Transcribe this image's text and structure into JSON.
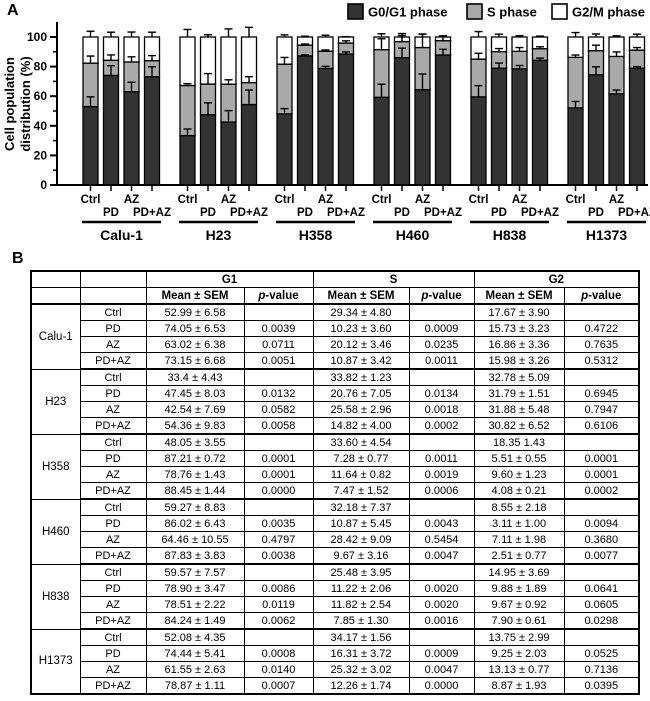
{
  "panel_a_label": "A",
  "panel_b_label": "B",
  "chart_data": {
    "type": "stacked_bar",
    "ylabel_lines": [
      "Cell population",
      "distribution (%)"
    ],
    "ylim": [
      0,
      100
    ],
    "yticks": [
      0,
      20,
      40,
      60,
      80,
      100
    ],
    "minor_tick_step": 10,
    "legend_position": "top-right",
    "phases": [
      "G0/G1 phase",
      "S phase",
      "G2/M phase"
    ],
    "phase_colors": [
      "#333333",
      "#a9a9a9",
      "#ffffff"
    ],
    "treatments": [
      "Ctrl",
      "PD",
      "AZ",
      "PD+AZ"
    ],
    "groups": [
      {
        "name": "Calu-1",
        "bars": [
          {
            "treatment": "Ctrl",
            "values": [
              52.99,
              29.34,
              17.67
            ],
            "sems": [
              6.58,
              4.8,
              3.9
            ]
          },
          {
            "treatment": "PD",
            "values": [
              74.05,
              10.23,
              15.73
            ],
            "sems": [
              6.53,
              3.6,
              3.23
            ]
          },
          {
            "treatment": "AZ",
            "values": [
              63.02,
              20.12,
              16.86
            ],
            "sems": [
              6.38,
              3.46,
              3.36
            ]
          },
          {
            "treatment": "PD+AZ",
            "values": [
              73.15,
              10.87,
              15.98
            ],
            "sems": [
              6.68,
              3.42,
              3.26
            ]
          }
        ]
      },
      {
        "name": "H23",
        "bars": [
          {
            "treatment": "Ctrl",
            "values": [
              33.4,
              33.82,
              32.78
            ],
            "sems": [
              4.43,
              1.23,
              5.09
            ]
          },
          {
            "treatment": "PD",
            "values": [
              47.45,
              20.76,
              31.79
            ],
            "sems": [
              8.03,
              7.05,
              1.51
            ]
          },
          {
            "treatment": "AZ",
            "values": [
              42.54,
              25.58,
              31.88
            ],
            "sems": [
              7.69,
              2.96,
              5.48
            ]
          },
          {
            "treatment": "PD+AZ",
            "values": [
              54.36,
              14.82,
              30.82
            ],
            "sems": [
              9.83,
              4.0,
              6.52
            ]
          }
        ]
      },
      {
        "name": "H358",
        "bars": [
          {
            "treatment": "Ctrl",
            "values": [
              48.05,
              33.6,
              18.35
            ],
            "sems": [
              3.55,
              4.54,
              1.43
            ]
          },
          {
            "treatment": "PD",
            "values": [
              87.21,
              7.28,
              5.51
            ],
            "sems": [
              0.72,
              0.77,
              0.55
            ]
          },
          {
            "treatment": "AZ",
            "values": [
              78.76,
              11.64,
              9.6
            ],
            "sems": [
              1.43,
              0.82,
              1.23
            ]
          },
          {
            "treatment": "PD+AZ",
            "values": [
              88.45,
              7.47,
              4.08
            ],
            "sems": [
              1.44,
              1.52,
              0.21
            ]
          }
        ]
      },
      {
        "name": "H460",
        "bars": [
          {
            "treatment": "Ctrl",
            "values": [
              59.27,
              32.18,
              8.55
            ],
            "sems": [
              8.83,
              7.37,
              2.18
            ]
          },
          {
            "treatment": "PD",
            "values": [
              86.02,
              10.87,
              3.11
            ],
            "sems": [
              6.43,
              5.45,
              1.0
            ]
          },
          {
            "treatment": "AZ",
            "values": [
              64.46,
              28.42,
              7.11
            ],
            "sems": [
              10.55,
              9.09,
              1.98
            ]
          },
          {
            "treatment": "PD+AZ",
            "values": [
              87.83,
              9.67,
              2.51
            ],
            "sems": [
              3.83,
              3.16,
              0.77
            ]
          }
        ]
      },
      {
        "name": "H838",
        "bars": [
          {
            "treatment": "Ctrl",
            "values": [
              59.57,
              25.48,
              14.95
            ],
            "sems": [
              7.57,
              3.95,
              3.69
            ]
          },
          {
            "treatment": "PD",
            "values": [
              78.9,
              11.22,
              9.88
            ],
            "sems": [
              3.47,
              2.06,
              1.89
            ]
          },
          {
            "treatment": "AZ",
            "values": [
              78.51,
              11.82,
              9.67
            ],
            "sems": [
              2.22,
              2.54,
              0.92
            ]
          },
          {
            "treatment": "PD+AZ",
            "values": [
              84.24,
              7.85,
              7.9
            ],
            "sems": [
              1.49,
              1.3,
              0.61
            ]
          }
        ]
      },
      {
        "name": "H1373",
        "bars": [
          {
            "treatment": "Ctrl",
            "values": [
              52.08,
              34.17,
              13.75
            ],
            "sems": [
              4.35,
              1.56,
              2.99
            ]
          },
          {
            "treatment": "PD",
            "values": [
              74.44,
              16.31,
              9.25
            ],
            "sems": [
              5.41,
              3.72,
              2.03
            ]
          },
          {
            "treatment": "AZ",
            "values": [
              61.55,
              25.32,
              13.13
            ],
            "sems": [
              2.63,
              3.02,
              0.77
            ]
          },
          {
            "treatment": "PD+AZ",
            "values": [
              78.87,
              12.26,
              8.87
            ],
            "sems": [
              1.11,
              1.74,
              1.93
            ]
          }
        ]
      }
    ]
  },
  "table": {
    "column_groups": [
      "G1",
      "S",
      "G2"
    ],
    "subheaders": {
      "mean": "Mean ± SEM",
      "p_italic": "p",
      "p_rest": "-value"
    },
    "blocks": [
      {
        "cell_line": "Calu-1",
        "rows": [
          {
            "treatment": "Ctrl",
            "g1_mean": "52.99 ± 6.58",
            "g1_p": "",
            "s_mean": "29.34 ± 4.80",
            "s_p": "",
            "g2_mean": "17.67 ± 3.90",
            "g2_p": ""
          },
          {
            "treatment": "PD",
            "g1_mean": "74.05 ± 6.53",
            "g1_p": "0.0039",
            "s_mean": "10.23 ± 3.60",
            "s_p": "0.0009",
            "g2_mean": "15.73 ± 3.23",
            "g2_p": "0.4722"
          },
          {
            "treatment": "AZ",
            "g1_mean": "63.02 ± 6.38",
            "g1_p": "0.0711",
            "s_mean": "20.12 ± 3.46",
            "s_p": "0.0235",
            "g2_mean": "16.86 ± 3.36",
            "g2_p": "0.7635"
          },
          {
            "treatment": "PD+AZ",
            "g1_mean": "73.15 ± 6.68",
            "g1_p": "0.0051",
            "s_mean": "10.87 ± 3.42",
            "s_p": "0.0011",
            "g2_mean": "15.98 ± 3.26",
            "g2_p": "0.5312"
          }
        ]
      },
      {
        "cell_line": "H23",
        "rows": [
          {
            "treatment": "Ctrl",
            "g1_mean": "33.4 ± 4.43",
            "g1_p": "",
            "s_mean": "33.82 ± 1.23",
            "s_p": "",
            "g2_mean": "32.78 ± 5.09",
            "g2_p": ""
          },
          {
            "treatment": "PD",
            "g1_mean": "47.45 ± 8.03",
            "g1_p": "0.0132",
            "s_mean": "20.76 ± 7.05",
            "s_p": "0.0134",
            "g2_mean": "31.79 ± 1.51",
            "g2_p": "0.6945"
          },
          {
            "treatment": "AZ",
            "g1_mean": "42.54 ± 7.69",
            "g1_p": "0.0582",
            "s_mean": "25.58 ± 2.96",
            "s_p": "0.0018",
            "g2_mean": "31.88 ± 5.48",
            "g2_p": "0.7947"
          },
          {
            "treatment": "PD+AZ",
            "g1_mean": "54.36 ± 9.83",
            "g1_p": "0.0058",
            "s_mean": "14.82 ± 4.00",
            "s_p": "0.0002",
            "g2_mean": "30.82 ± 6.52",
            "g2_p": "0.6106"
          }
        ]
      },
      {
        "cell_line": "H358",
        "rows": [
          {
            "treatment": "Ctrl",
            "g1_mean": "48.05 ± 3.55",
            "g1_p": "",
            "s_mean": "33.60 ± 4.54",
            "s_p": "",
            "g2_mean": "18.35 1.43",
            "g2_p": ""
          },
          {
            "treatment": "PD",
            "g1_mean": "87.21 ± 0.72",
            "g1_p": "0.0001",
            "s_mean": "7.28 ± 0.77",
            "s_p": "0.0011",
            "g2_mean": "5.51 ± 0.55",
            "g2_p": "0.0001"
          },
          {
            "treatment": "AZ",
            "g1_mean": "78.76 ± 1.43",
            "g1_p": "0.0001",
            "s_mean": "11.64 ± 0.82",
            "s_p": "0.0019",
            "g2_mean": "9.60 ± 1.23",
            "g2_p": "0.0001"
          },
          {
            "treatment": "PD+AZ",
            "g1_mean": "88.45 ± 1.44",
            "g1_p": "0.0000",
            "s_mean": "7.47 ± 1.52",
            "s_p": "0.0006",
            "g2_mean": "4.08 ± 0.21",
            "g2_p": "0.0002"
          }
        ]
      },
      {
        "cell_line": "H460",
        "rows": [
          {
            "treatment": "Ctrl",
            "g1_mean": "59.27 ± 8.83",
            "g1_p": "",
            "s_mean": "32.18 ± 7.37",
            "s_p": "",
            "g2_mean": "8.55 ± 2.18",
            "g2_p": ""
          },
          {
            "treatment": "PD",
            "g1_mean": "86.02 ± 6.43",
            "g1_p": "0.0035",
            "s_mean": "10.87 ± 5.45",
            "s_p": "0.0043",
            "g2_mean": "3.11 ± 1.00",
            "g2_p": "0.0094"
          },
          {
            "treatment": "AZ",
            "g1_mean": "64.46 ± 10.55",
            "g1_p": "0.4797",
            "s_mean": "28.42 ± 9.09",
            "s_p": "0.5454",
            "g2_mean": "7.11 ± 1.98",
            "g2_p": "0.3680"
          },
          {
            "treatment": "PD+AZ",
            "g1_mean": "87.83 ± 3.83",
            "g1_p": "0.0038",
            "s_mean": "9.67 ± 3.16",
            "s_p": "0.0047",
            "g2_mean": "2.51 ± 0.77",
            "g2_p": "0.0077"
          }
        ]
      },
      {
        "cell_line": "H838",
        "rows": [
          {
            "treatment": "Ctrl",
            "g1_mean": "59.57 ± 7.57",
            "g1_p": "",
            "s_mean": "25.48 ± 3.95",
            "s_p": "",
            "g2_mean": "14.95 ± 3.69",
            "g2_p": ""
          },
          {
            "treatment": "PD",
            "g1_mean": "78.90 ± 3.47",
            "g1_p": "0.0086",
            "s_mean": "11.22 ± 2.06",
            "s_p": "0.0020",
            "g2_mean": "9.88 ± 1.89",
            "g2_p": "0.0641"
          },
          {
            "treatment": "AZ",
            "g1_mean": "78.51 ± 2.22",
            "g1_p": "0.0119",
            "s_mean": "11.82 ± 2.54",
            "s_p": "0.0020",
            "g2_mean": "9.67 ± 0.92",
            "g2_p": "0.0605"
          },
          {
            "treatment": "PD+AZ",
            "g1_mean": "84.24 ± 1.49",
            "g1_p": "0.0062",
            "s_mean": "7.85 ± 1.30",
            "s_p": "0.0016",
            "g2_mean": "7.90 ± 0.61",
            "g2_p": "0.0298"
          }
        ]
      },
      {
        "cell_line": "H1373",
        "rows": [
          {
            "treatment": "Ctrl",
            "g1_mean": "52.08 ± 4.35",
            "g1_p": "",
            "s_mean": "34.17 ± 1.56",
            "s_p": "",
            "g2_mean": "13.75 ± 2.99",
            "g2_p": ""
          },
          {
            "treatment": "PD",
            "g1_mean": "74.44 ± 5.41",
            "g1_p": "0.0008",
            "s_mean": "16.31 ± 3.72",
            "s_p": "0.0009",
            "g2_mean": "9.25 ± 2.03",
            "g2_p": "0.0525"
          },
          {
            "treatment": "AZ",
            "g1_mean": "61.55 ± 2.63",
            "g1_p": "0.0140",
            "s_mean": "25.32 ± 3.02",
            "s_p": "0.0047",
            "g2_mean": "13.13 ± 0.77",
            "g2_p": "0.7136"
          },
          {
            "treatment": "PD+AZ",
            "g1_mean": "78.87 ± 1.11",
            "g1_p": "0.0007",
            "s_mean": "12.26 ± 1.74",
            "s_p": "0.0000",
            "g2_mean": "8.87 ± 1.93",
            "g2_p": "0.0395"
          }
        ]
      }
    ]
  }
}
